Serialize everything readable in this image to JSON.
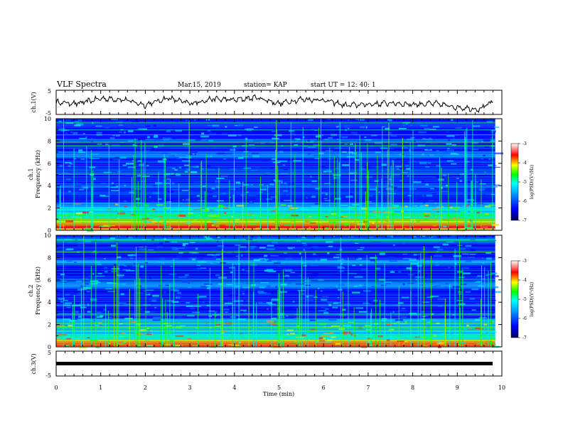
{
  "header": {
    "title": "VLF Spectra",
    "date": "Mar.15, 2019",
    "station": "station= KAP",
    "start": "start  UT =   12: 40: 1"
  },
  "colors": {
    "waveform": "#000000",
    "colormap": [
      "#00007a",
      "#0000ff",
      "#0090ff",
      "#00ffff",
      "#00ff00",
      "#ffff00",
      "#ff0000",
      "#ffffff"
    ]
  },
  "chart_data": [
    {
      "type": "line",
      "title": "",
      "ylabel": "ch.1(V)",
      "ylim": [
        -5,
        5
      ],
      "yticks": [
        "5",
        "-5"
      ],
      "x_range_min": [
        0,
        9.85
      ],
      "description_values": {
        "x": [
          0,
          0.5,
          1.0,
          1.5,
          2.0,
          2.5,
          3.0,
          3.5,
          4.0,
          4.5,
          5.0,
          5.5,
          6.0,
          6.5,
          7.0,
          7.5,
          8.0,
          8.5,
          9.0,
          9.5,
          9.8
        ],
        "y": [
          0.0,
          -0.5,
          1.6,
          1.2,
          -1.1,
          1.8,
          -0.5,
          1.4,
          1.0,
          2.0,
          -0.5,
          1.3,
          1.0,
          -1.3,
          -0.8,
          -0.3,
          -0.8,
          -0.5,
          -2.0,
          -2.8,
          0.2
        ]
      }
    },
    {
      "type": "heatmap",
      "title": "",
      "ylabel": "ch.1\nFrequency  (kHz)",
      "xlim": [
        0,
        10
      ],
      "ylim": [
        0,
        10
      ],
      "yticks": [
        "10",
        "8",
        "6",
        "4",
        "2",
        "0"
      ],
      "colorbar": {
        "label": "log(PSD)(V²/Hz)",
        "range": [
          -7,
          -3
        ],
        "ticks": [
          "-3",
          "-4",
          "-5",
          "-6",
          "-7"
        ]
      },
      "bands_kHz": [
        {
          "f": 0.3,
          "level": -3.5
        },
        {
          "f": 0.8,
          "level": -4.2
        },
        {
          "f": 1.3,
          "level": -4.8
        },
        {
          "f": 1.8,
          "level": -5.0
        },
        {
          "f": 2.3,
          "level": -5.6
        },
        {
          "f": 3.2,
          "level": -6.6
        },
        {
          "f": 4.0,
          "level": -5.8
        },
        {
          "f": 5.0,
          "level": -6.2
        },
        {
          "f": 5.4,
          "level": -5.9
        },
        {
          "f": 6.8,
          "level": -5.5
        },
        {
          "f": 8.0,
          "level": -5.8
        },
        {
          "f": 9.4,
          "level": -5.9
        }
      ]
    },
    {
      "type": "heatmap",
      "title": "",
      "ylabel": "ch.2\nFrequency  (kHz)",
      "xlim": [
        0,
        10
      ],
      "ylim": [
        0,
        10
      ],
      "yticks": [
        "10",
        "8",
        "6",
        "4",
        "2",
        "0"
      ],
      "colorbar": {
        "label": "log(PSD)(V²/Hz)",
        "range": [
          -7,
          -3
        ],
        "ticks": [
          "-3",
          "-4",
          "-5",
          "-6",
          "-7"
        ]
      },
      "bands_kHz": [
        {
          "f": 0.3,
          "level": -3.5
        },
        {
          "f": 1.0,
          "level": -5.2
        },
        {
          "f": 1.8,
          "level": -5.4
        },
        {
          "f": 2.2,
          "level": -5.5
        },
        {
          "f": 3.3,
          "level": -6.7
        },
        {
          "f": 3.8,
          "level": -6.2
        },
        {
          "f": 5.5,
          "level": -5.3
        },
        {
          "f": 7.6,
          "level": -5.5
        },
        {
          "f": 9.6,
          "level": -5.5
        }
      ]
    },
    {
      "type": "line",
      "title": "",
      "ylabel": "ch.3(V)",
      "ylim": [
        -5,
        5
      ],
      "yticks": [
        "5",
        "-5"
      ],
      "x": [
        0,
        9.85
      ],
      "y": [
        0,
        0
      ]
    }
  ],
  "xaxis": {
    "label": "Time  (min)",
    "ticks": [
      "0",
      "1",
      "2",
      "3",
      "4",
      "5",
      "6",
      "7",
      "8",
      "9",
      "10"
    ]
  }
}
